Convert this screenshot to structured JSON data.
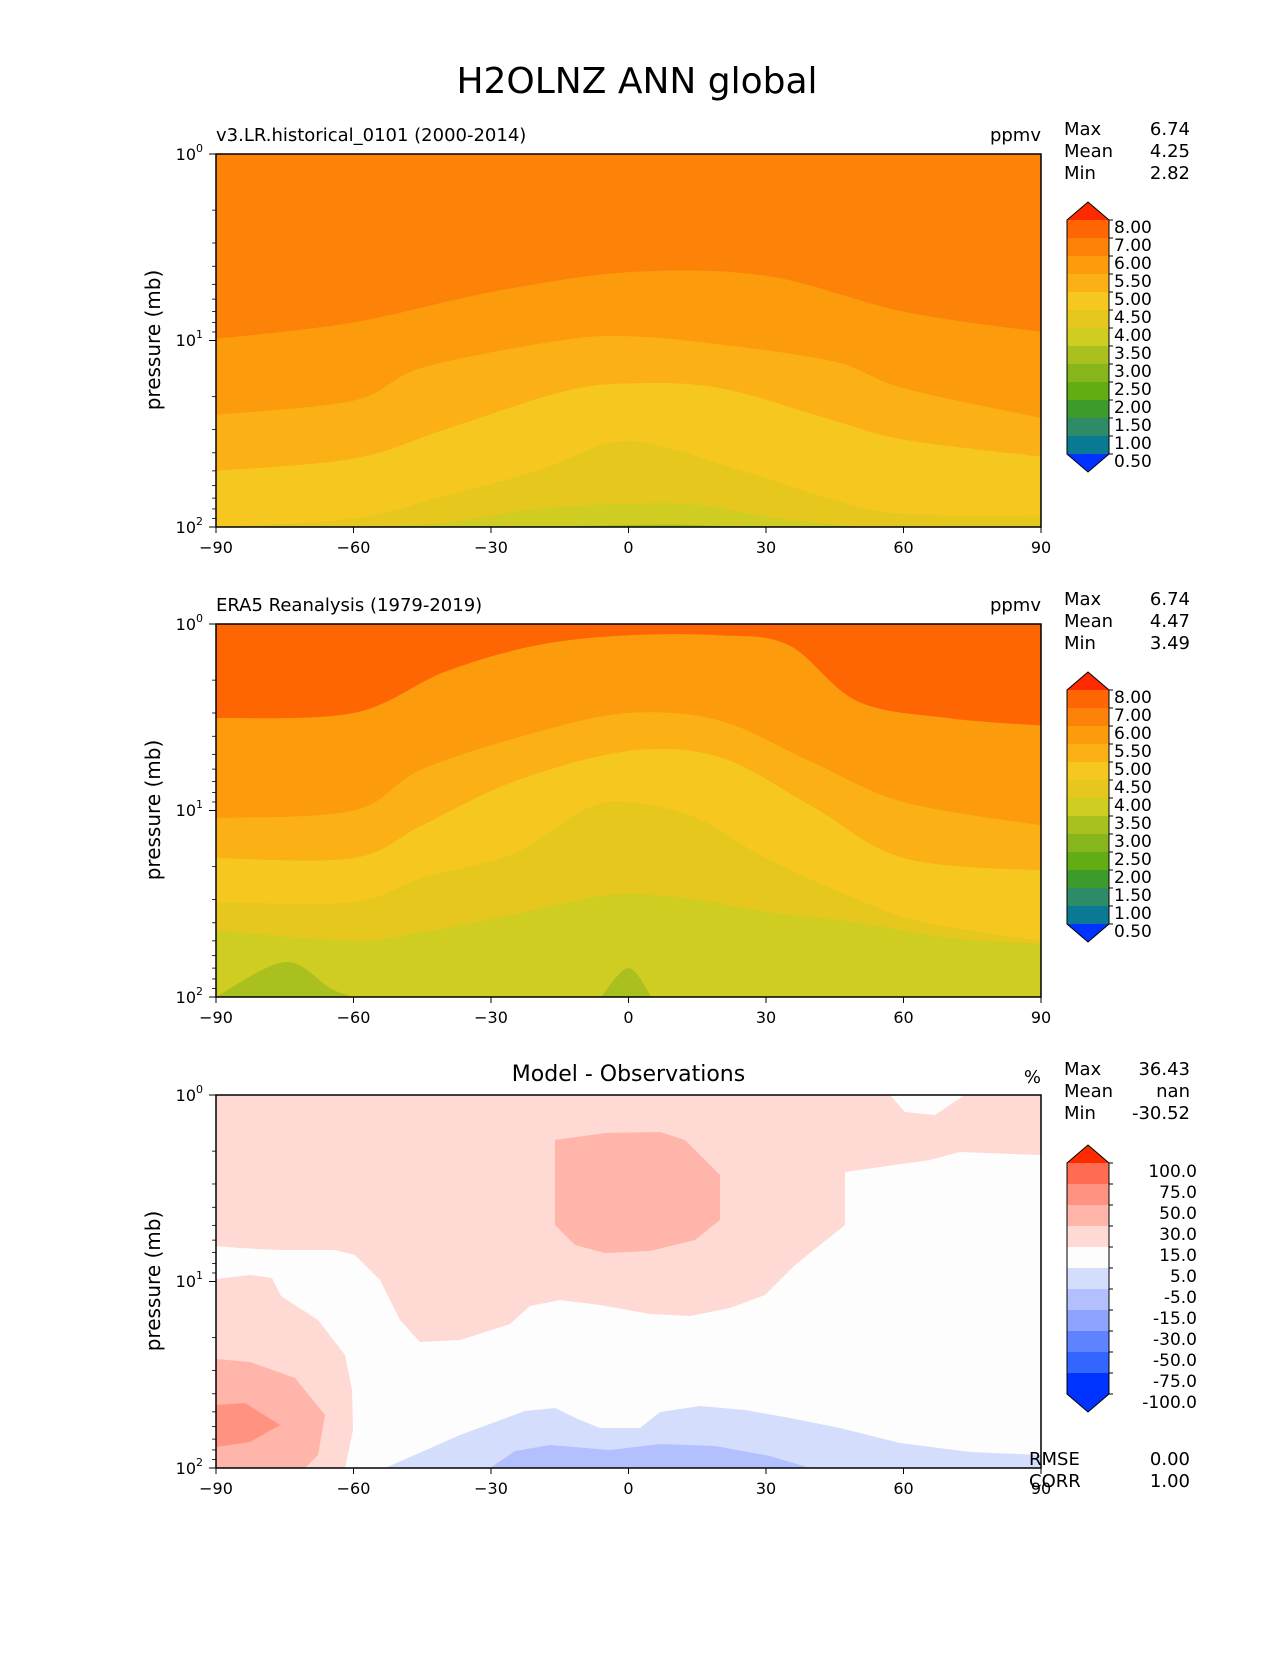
{
  "title": "H2OLNZ ANN global",
  "colors": {
    "water_levels": [
      "#0033ff",
      "#0060dd",
      "#0a7a94",
      "#2e8b67",
      "#3d9b2c",
      "#62ac14",
      "#86b61c",
      "#a9c01e",
      "#cfcc22",
      "#e6c71e",
      "#f6c81f",
      "#fbb116",
      "#fc9b0c",
      "#fc8307",
      "#fe6503",
      "#ff2a00"
    ],
    "diff_levels": [
      "#0033ff",
      "#3366ff",
      "#5f83ff",
      "#8ea3ff",
      "#b3c0ff",
      "#d5ddfd",
      "#fdfdfd",
      "#ffd9d4",
      "#ffb5aa",
      "#ff9380",
      "#ff6b53",
      "#ff2a00"
    ]
  },
  "chart_data": [
    {
      "type": "contourf",
      "panel_id": "model",
      "left_title": "v3.LR.historical_0101 (2000-2014)",
      "center_title": "",
      "units": "ppmv",
      "xlabel": "",
      "ylabel": "pressure (mb)",
      "x_ticks": [
        "−90",
        "−60",
        "−30",
        "0",
        "30",
        "60",
        "90"
      ],
      "y_ticks": [
        {
          "base": "10",
          "exp": "0"
        },
        {
          "base": "10",
          "exp": "1"
        },
        {
          "base": "10",
          "exp": "2"
        }
      ],
      "xlim": [
        -90,
        90
      ],
      "ylim": [
        1,
        100
      ],
      "y_scale": "log",
      "stats": [
        {
          "label": "Max",
          "value": "6.74"
        },
        {
          "label": "Mean",
          "value": "4.25"
        },
        {
          "label": "Min",
          "value": "2.82"
        }
      ],
      "colorbar_labels": [
        "8.00",
        "7.00",
        "6.00",
        "5.50",
        "5.00",
        "4.50",
        "4.00",
        "3.50",
        "3.00",
        "2.50",
        "2.00",
        "1.50",
        "1.00",
        "0.50"
      ],
      "level_values": [
        0.5,
        1.0,
        1.5,
        2.0,
        2.5,
        3.0,
        3.5,
        4.0,
        4.5,
        5.0,
        5.5,
        6.0,
        7.0,
        8.0
      ],
      "contour_bands": [
        {
          "level_index": 12,
          "lower_boundary": [
            [
              -90,
              9.8
            ],
            [
              -60,
              8.0
            ],
            [
              -30,
              5.5
            ],
            [
              0,
              4.3
            ],
            [
              30,
              4.5
            ],
            [
              60,
              7.0
            ],
            [
              90,
              9.0
            ]
          ]
        },
        {
          "level_index": 11,
          "lower_boundary": [
            [
              -90,
              25
            ],
            [
              -60,
              21
            ],
            [
              -45,
              14
            ],
            [
              -15,
              10
            ],
            [
              0,
              9.5
            ],
            [
              20,
              10.5
            ],
            [
              45,
              13
            ],
            [
              60,
              18
            ],
            [
              90,
              26
            ]
          ]
        },
        {
          "level_index": 10,
          "lower_boundary": [
            [
              -90,
              50
            ],
            [
              -60,
              43
            ],
            [
              -40,
              30
            ],
            [
              -15,
              19
            ],
            [
              0,
              17
            ],
            [
              20,
              18
            ],
            [
              45,
              27
            ],
            [
              60,
              34
            ],
            [
              90,
              42
            ]
          ]
        },
        {
          "level_index": 9,
          "lower_boundary": [
            [
              -90,
              100
            ],
            [
              -60,
              90
            ],
            [
              -40,
              68
            ],
            [
              -20,
              50
            ],
            [
              -5,
              36
            ],
            [
              5,
              36
            ],
            [
              25,
              50
            ],
            [
              45,
              72
            ],
            [
              60,
              85
            ],
            [
              90,
              88
            ]
          ]
        },
        {
          "level_index": 8,
          "lower_boundary": [
            [
              -60,
              100
            ],
            [
              -40,
              95
            ],
            [
              -20,
              80
            ],
            [
              0,
              75
            ],
            [
              15,
              76
            ],
            [
              30,
              88
            ],
            [
              50,
              100
            ]
          ]
        },
        {
          "level_index": 7,
          "lower_boundary": [
            [
              -20,
              100
            ],
            [
              -5,
              98
            ],
            [
              10,
              97
            ],
            [
              25,
              100
            ]
          ]
        }
      ]
    },
    {
      "type": "contourf",
      "panel_id": "obs",
      "left_title": "ERA5 Reanalysis (1979-2019)",
      "center_title": "",
      "units": "ppmv",
      "xlabel": "",
      "ylabel": "pressure (mb)",
      "x_ticks": [
        "−90",
        "−60",
        "−30",
        "0",
        "30",
        "60",
        "90"
      ],
      "y_ticks": [
        {
          "base": "10",
          "exp": "0"
        },
        {
          "base": "10",
          "exp": "1"
        },
        {
          "base": "10",
          "exp": "2"
        }
      ],
      "xlim": [
        -90,
        90
      ],
      "ylim": [
        1,
        100
      ],
      "y_scale": "log",
      "stats": [
        {
          "label": "Max",
          "value": "6.74"
        },
        {
          "label": "Mean",
          "value": "4.47"
        },
        {
          "label": "Min",
          "value": "3.49"
        }
      ],
      "colorbar_labels": [
        "8.00",
        "7.00",
        "6.00",
        "5.50",
        "5.00",
        "4.50",
        "4.00",
        "3.50",
        "3.00",
        "2.50",
        "2.00",
        "1.50",
        "1.00",
        "0.50"
      ],
      "level_values": [
        0.5,
        1.0,
        1.5,
        2.0,
        2.5,
        3.0,
        3.5,
        4.0,
        4.5,
        5.0,
        5.5,
        6.0,
        7.0,
        8.0
      ],
      "contour_bands": [
        {
          "level_index": 12,
          "lower_boundary": [
            [
              -90,
              3.2
            ],
            [
              -60,
              3.0
            ],
            [
              -40,
              1.8
            ],
            [
              -20,
              1.3
            ],
            [
              0,
              1.15
            ],
            [
              20,
              1.15
            ],
            [
              35,
              1.3
            ],
            [
              50,
              2.6
            ],
            [
              70,
              3.2
            ],
            [
              90,
              3.5
            ]
          ]
        },
        {
          "level_index": 11,
          "lower_boundary": [
            [
              -90,
              11
            ],
            [
              -60,
              10
            ],
            [
              -45,
              6.0
            ],
            [
              -20,
              3.8
            ],
            [
              0,
              3.0
            ],
            [
              20,
              3.3
            ],
            [
              40,
              5.5
            ],
            [
              60,
              9.0
            ],
            [
              90,
              12
            ]
          ]
        },
        {
          "level_index": 10,
          "lower_boundary": [
            [
              -90,
              18
            ],
            [
              -60,
              18
            ],
            [
              -45,
              12
            ],
            [
              -25,
              7.0
            ],
            [
              0,
              4.8
            ],
            [
              20,
              5.2
            ],
            [
              40,
              9.5
            ],
            [
              60,
              18
            ],
            [
              90,
              21
            ]
          ]
        },
        {
          "level_index": 9,
          "lower_boundary": [
            [
              -90,
              31
            ],
            [
              -60,
              31
            ],
            [
              -45,
              23
            ],
            [
              -25,
              17
            ],
            [
              -10,
              10
            ],
            [
              0,
              9.0
            ],
            [
              15,
              11
            ],
            [
              30,
              18
            ],
            [
              50,
              30
            ],
            [
              65,
              40
            ],
            [
              90,
              50
            ]
          ]
        },
        {
          "level_index": 8,
          "lower_boundary": [
            [
              -90,
              44
            ],
            [
              -60,
              50
            ],
            [
              -45,
              45
            ],
            [
              -25,
              36
            ],
            [
              -10,
              30
            ],
            [
              0,
              28
            ],
            [
              15,
              30
            ],
            [
              30,
              35
            ],
            [
              50,
              40
            ],
            [
              70,
              48
            ],
            [
              90,
              52
            ]
          ]
        },
        {
          "level_index": 7,
          "lower_boundary": [
            [
              -90,
              100
            ],
            [
              -75,
              65
            ],
            [
              -65,
              90
            ],
            [
              -60,
              100
            ]
          ]
        },
        {
          "level_index": 7,
          "lower_boundary": [
            [
              -6,
              100
            ],
            [
              0,
              70
            ],
            [
              5,
              100
            ]
          ]
        }
      ]
    },
    {
      "type": "contourf",
      "panel_id": "diff",
      "left_title": "",
      "center_title": "Model - Observations",
      "units": "%",
      "xlabel": "",
      "ylabel": "pressure (mb)",
      "x_ticks": [
        "−90",
        "−60",
        "−30",
        "0",
        "30",
        "60",
        "90"
      ],
      "y_ticks": [
        {
          "base": "10",
          "exp": "0"
        },
        {
          "base": "10",
          "exp": "1"
        },
        {
          "base": "10",
          "exp": "2"
        }
      ],
      "xlim": [
        -90,
        90
      ],
      "ylim": [
        1,
        100
      ],
      "y_scale": "log",
      "stats": [
        {
          "label": "Max",
          "value": "36.43"
        },
        {
          "label": "Mean",
          "value": "nan"
        },
        {
          "label": "Min",
          "value": "-30.52"
        }
      ],
      "colorbar_labels": [
        "100.0",
        "75.0",
        "50.0",
        "30.0",
        "15.0",
        "5.0",
        "-5.0",
        "-15.0",
        "-30.0",
        "-50.0",
        "-75.0",
        "-100.0"
      ],
      "level_values": [
        -100,
        -75,
        -50,
        -30,
        -15,
        -5,
        5,
        15,
        30,
        50,
        75,
        100
      ],
      "extra_stats": [
        {
          "label": "RMSE",
          "value": "0.00"
        },
        {
          "label": "CORR",
          "value": "1.00"
        }
      ]
    }
  ]
}
